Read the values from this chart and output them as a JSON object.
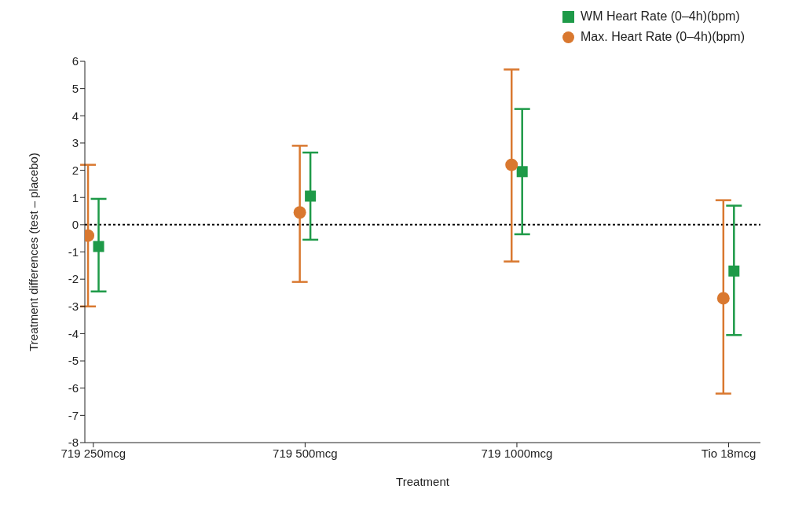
{
  "chart_data": {
    "type": "scatter",
    "xlabel": "Treatment",
    "ylabel": "Treatment differences (test – placebo)",
    "categories": [
      "719 250mcg",
      "719 500mcg",
      "719 1000mcg",
      "Tio 18mcg"
    ],
    "series": [
      {
        "name": "WM Heart Rate (0–4h)(bpm)",
        "color": "#1e9a48",
        "marker": "square",
        "values": [
          -0.8,
          1.05,
          1.95,
          -1.7
        ],
        "errors": [
          [
            -2.45,
            0.95
          ],
          [
            -0.55,
            2.65
          ],
          [
            -0.35,
            4.25
          ],
          [
            -4.05,
            0.7
          ]
        ]
      },
      {
        "name": "Max. Heart Rate (0–4h)(bpm)",
        "color": "#d9782f",
        "marker": "circle",
        "values": [
          -0.4,
          0.45,
          2.2,
          -2.7
        ],
        "errors": [
          [
            -3.0,
            2.2
          ],
          [
            -2.1,
            2.9
          ],
          [
            -1.35,
            5.7
          ],
          [
            -6.2,
            0.9
          ]
        ]
      }
    ],
    "ylim": [
      -8,
      6
    ],
    "yticks": [
      -8,
      -7,
      -6,
      -5,
      -4,
      -3,
      -2,
      -1,
      0,
      1,
      2,
      3,
      4,
      5,
      6
    ],
    "ref_lines": [
      {
        "axis": "y",
        "value": 0,
        "color": "#000000",
        "line_style": "dotted"
      }
    ],
    "grid": false,
    "legend": "top right"
  }
}
